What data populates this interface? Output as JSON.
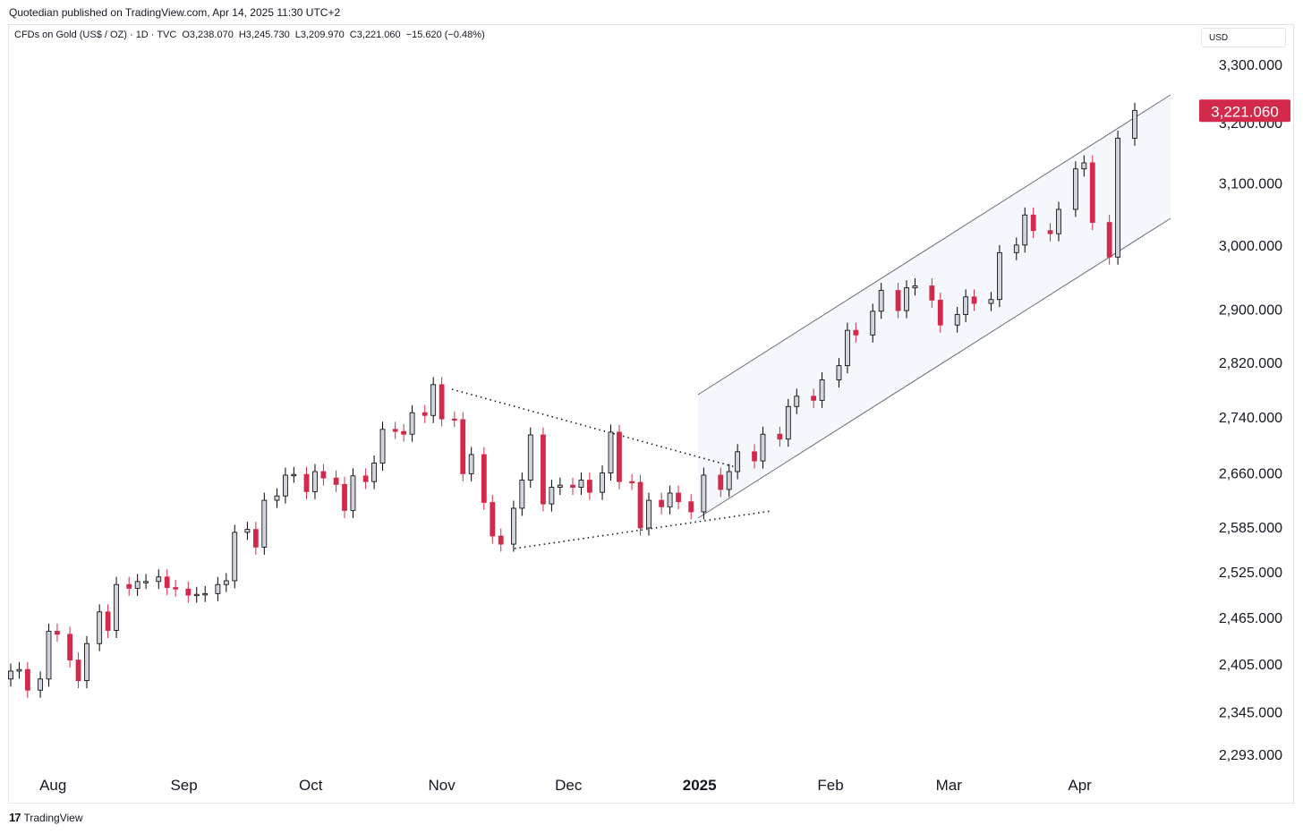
{
  "publisher_line": "Quotedian published on TradingView.com, Apr 14, 2025 11:30 UTC+2",
  "symbol": {
    "name": "CFDs on Gold (US$ / OZ) · 1D · TVC",
    "open": "O3,238.070",
    "high": "H3,245.730",
    "low": "L3,209.970",
    "close": "C3,221.060",
    "change": "−15.620 (−0.48%)"
  },
  "currency": "USD",
  "footer_brand": "TradingView",
  "colors": {
    "up": "#d1d4dc",
    "down": "#d3294a",
    "outline": "#000000",
    "price_badge": "#d3294a"
  },
  "chart_data": {
    "type": "candlestick",
    "title": "CFDs on Gold (US$ / OZ) · 1D · TVC",
    "y_scale": "log",
    "ylim": [
      2250,
      3330
    ],
    "y_ticks": [
      {
        "value": 3300,
        "label": "3,300.000"
      },
      {
        "value": 3200,
        "label": "3,200.000"
      },
      {
        "value": 3100,
        "label": "3,100.000"
      },
      {
        "value": 3000,
        "label": "3,000.000"
      },
      {
        "value": 2900,
        "label": "2,900.000"
      },
      {
        "value": 2820,
        "label": "2,820.000"
      },
      {
        "value": 2740,
        "label": "2,740.000"
      },
      {
        "value": 2660,
        "label": "2,660.000"
      },
      {
        "value": 2585,
        "label": "2,585.000"
      },
      {
        "value": 2525,
        "label": "2,525.000"
      },
      {
        "value": 2465,
        "label": "2,465.000"
      },
      {
        "value": 2405,
        "label": "2,405.000"
      },
      {
        "value": 2345,
        "label": "2,345.000"
      },
      {
        "value": 2293,
        "label": "2,293.000"
      }
    ],
    "x_ticks": [
      {
        "date": "2024-08-01",
        "label": "Aug",
        "bold": false
      },
      {
        "date": "2024-09-01",
        "label": "Sep",
        "bold": false
      },
      {
        "date": "2024-10-01",
        "label": "Oct",
        "bold": false
      },
      {
        "date": "2024-11-01",
        "label": "Nov",
        "bold": false
      },
      {
        "date": "2024-12-01",
        "label": "Dec",
        "bold": false
      },
      {
        "date": "2025-01-01",
        "label": "2025",
        "bold": true
      },
      {
        "date": "2025-02-01",
        "label": "Feb",
        "bold": false
      },
      {
        "date": "2025-03-01",
        "label": "Mar",
        "bold": false
      },
      {
        "date": "2025-04-01",
        "label": "Apr",
        "bold": false
      }
    ],
    "last_price": {
      "value": 3221.06,
      "label": "3,221.060"
    },
    "close_series": [
      {
        "date": "2024-07-22",
        "close": 2396
      },
      {
        "date": "2024-07-24",
        "close": 2398
      },
      {
        "date": "2024-07-26",
        "close": 2372
      },
      {
        "date": "2024-07-29",
        "close": 2386
      },
      {
        "date": "2024-07-31",
        "close": 2447
      },
      {
        "date": "2024-08-02",
        "close": 2443
      },
      {
        "date": "2024-08-05",
        "close": 2410
      },
      {
        "date": "2024-08-07",
        "close": 2384
      },
      {
        "date": "2024-08-09",
        "close": 2431
      },
      {
        "date": "2024-08-12",
        "close": 2472
      },
      {
        "date": "2024-08-14",
        "close": 2448
      },
      {
        "date": "2024-08-16",
        "close": 2508
      },
      {
        "date": "2024-08-19",
        "close": 2503
      },
      {
        "date": "2024-08-21",
        "close": 2512
      },
      {
        "date": "2024-08-23",
        "close": 2512
      },
      {
        "date": "2024-08-26",
        "close": 2518
      },
      {
        "date": "2024-08-28",
        "close": 2504
      },
      {
        "date": "2024-08-30",
        "close": 2502
      },
      {
        "date": "2024-09-02",
        "close": 2494
      },
      {
        "date": "2024-09-04",
        "close": 2495
      },
      {
        "date": "2024-09-06",
        "close": 2496
      },
      {
        "date": "2024-09-09",
        "close": 2508
      },
      {
        "date": "2024-09-11",
        "close": 2513
      },
      {
        "date": "2024-09-13",
        "close": 2578
      },
      {
        "date": "2024-09-16",
        "close": 2582
      },
      {
        "date": "2024-09-18",
        "close": 2558
      },
      {
        "date": "2024-09-20",
        "close": 2622
      },
      {
        "date": "2024-09-23",
        "close": 2628
      },
      {
        "date": "2024-09-25",
        "close": 2657
      },
      {
        "date": "2024-09-27",
        "close": 2658
      },
      {
        "date": "2024-09-30",
        "close": 2634
      },
      {
        "date": "2024-10-02",
        "close": 2662
      },
      {
        "date": "2024-10-04",
        "close": 2653
      },
      {
        "date": "2024-10-07",
        "close": 2644
      },
      {
        "date": "2024-10-09",
        "close": 2608
      },
      {
        "date": "2024-10-11",
        "close": 2656
      },
      {
        "date": "2024-10-14",
        "close": 2648
      },
      {
        "date": "2024-10-16",
        "close": 2674
      },
      {
        "date": "2024-10-18",
        "close": 2722
      },
      {
        "date": "2024-10-21",
        "close": 2719
      },
      {
        "date": "2024-10-23",
        "close": 2715
      },
      {
        "date": "2024-10-25",
        "close": 2746
      },
      {
        "date": "2024-10-28",
        "close": 2742
      },
      {
        "date": "2024-10-30",
        "close": 2787
      },
      {
        "date": "2024-11-01",
        "close": 2737
      },
      {
        "date": "2024-11-04",
        "close": 2736
      },
      {
        "date": "2024-11-06",
        "close": 2659
      },
      {
        "date": "2024-11-08",
        "close": 2686
      },
      {
        "date": "2024-11-11",
        "close": 2619
      },
      {
        "date": "2024-11-13",
        "close": 2573
      },
      {
        "date": "2024-11-15",
        "close": 2562
      },
      {
        "date": "2024-11-18",
        "close": 2611
      },
      {
        "date": "2024-11-20",
        "close": 2650
      },
      {
        "date": "2024-11-22",
        "close": 2714
      },
      {
        "date": "2024-11-25",
        "close": 2617
      },
      {
        "date": "2024-11-27",
        "close": 2640
      },
      {
        "date": "2024-11-29",
        "close": 2643
      },
      {
        "date": "2024-12-02",
        "close": 2640
      },
      {
        "date": "2024-12-04",
        "close": 2650
      },
      {
        "date": "2024-12-06",
        "close": 2633
      },
      {
        "date": "2024-12-09",
        "close": 2660
      },
      {
        "date": "2024-12-11",
        "close": 2718
      },
      {
        "date": "2024-12-13",
        "close": 2648
      },
      {
        "date": "2024-12-16",
        "close": 2647
      },
      {
        "date": "2024-12-18",
        "close": 2584
      },
      {
        "date": "2024-12-20",
        "close": 2622
      },
      {
        "date": "2024-12-23",
        "close": 2613
      },
      {
        "date": "2024-12-25",
        "close": 2632
      },
      {
        "date": "2024-12-27",
        "close": 2620
      },
      {
        "date": "2024-12-30",
        "close": 2606
      },
      {
        "date": "2025-01-02",
        "close": 2657
      },
      {
        "date": "2025-01-06",
        "close": 2637
      },
      {
        "date": "2025-01-08",
        "close": 2662
      },
      {
        "date": "2025-01-10",
        "close": 2690
      },
      {
        "date": "2025-01-14",
        "close": 2677
      },
      {
        "date": "2025-01-16",
        "close": 2715
      },
      {
        "date": "2025-01-20",
        "close": 2708
      },
      {
        "date": "2025-01-22",
        "close": 2755
      },
      {
        "date": "2025-01-24",
        "close": 2770
      },
      {
        "date": "2025-01-28",
        "close": 2764
      },
      {
        "date": "2025-01-30",
        "close": 2794
      },
      {
        "date": "2025-02-03",
        "close": 2815
      },
      {
        "date": "2025-02-05",
        "close": 2868
      },
      {
        "date": "2025-02-07",
        "close": 2861
      },
      {
        "date": "2025-02-11",
        "close": 2897
      },
      {
        "date": "2025-02-13",
        "close": 2929
      },
      {
        "date": "2025-02-17",
        "close": 2898
      },
      {
        "date": "2025-02-19",
        "close": 2933
      },
      {
        "date": "2025-02-21",
        "close": 2936
      },
      {
        "date": "2025-02-25",
        "close": 2914
      },
      {
        "date": "2025-02-27",
        "close": 2876
      },
      {
        "date": "2025-03-03",
        "close": 2892
      },
      {
        "date": "2025-03-05",
        "close": 2919
      },
      {
        "date": "2025-03-07",
        "close": 2909
      },
      {
        "date": "2025-03-11",
        "close": 2915
      },
      {
        "date": "2025-03-13",
        "close": 2988
      },
      {
        "date": "2025-03-17",
        "close": 3000
      },
      {
        "date": "2025-03-19",
        "close": 3048
      },
      {
        "date": "2025-03-21",
        "close": 3023
      },
      {
        "date": "2025-03-25",
        "close": 3018
      },
      {
        "date": "2025-03-27",
        "close": 3057
      },
      {
        "date": "2025-03-31",
        "close": 3123
      },
      {
        "date": "2025-04-02",
        "close": 3133
      },
      {
        "date": "2025-04-04",
        "close": 3036
      },
      {
        "date": "2025-04-08",
        "close": 2981
      },
      {
        "date": "2025-04-10",
        "close": 3174
      },
      {
        "date": "2025-04-14",
        "close": 3221
      }
    ]
  }
}
